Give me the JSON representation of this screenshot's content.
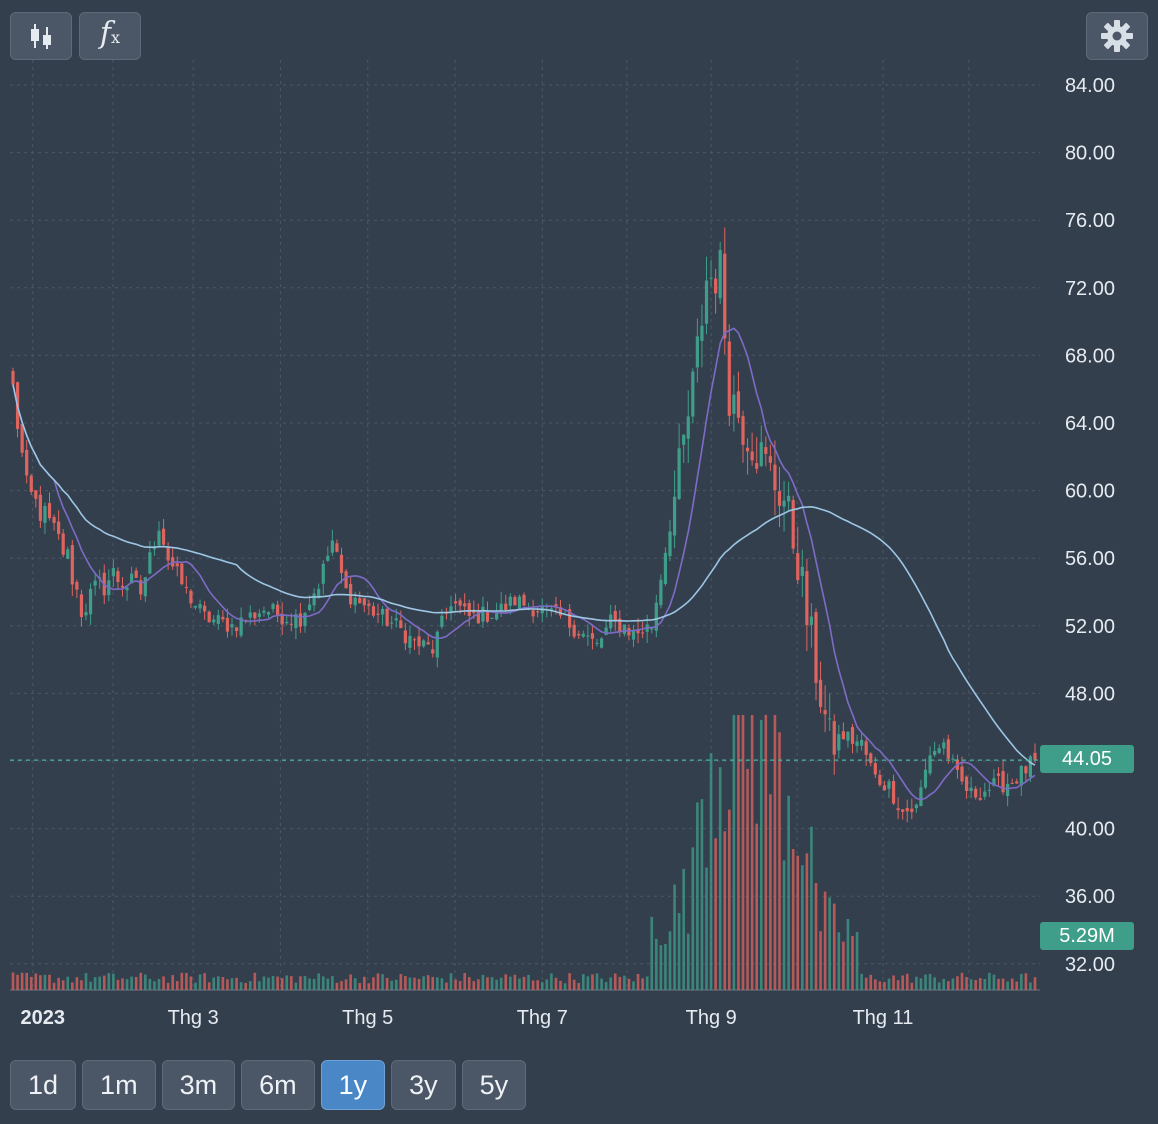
{
  "toolbar": {
    "chart_type_icon": "candlestick-icon",
    "indicator_icon": "function-fx-icon",
    "indicator_label": "f",
    "indicator_sub": "x",
    "settings_icon": "gear-icon"
  },
  "ranges": {
    "options": [
      "1d",
      "1m",
      "3m",
      "6m",
      "1y",
      "3y",
      "5y"
    ],
    "selected": "1y"
  },
  "price_tag": "44.05",
  "volume_tag": "5.29M",
  "colors": {
    "background": "#343f4d",
    "up": "#3f9e8a",
    "down": "#e0645e",
    "ma_short": "#7d6bc6",
    "ma_long": "#9cc6e4",
    "grid": "#4c5766",
    "price_line": "#44b3a0",
    "axis_text": "#e6ebf1"
  },
  "chart_data": {
    "type": "candlestick",
    "title": "",
    "xlabel": "",
    "ylabel": "",
    "ylim": [
      30,
      86
    ],
    "y_ticks": [
      "84.00",
      "80.00",
      "76.00",
      "72.00",
      "68.00",
      "64.00",
      "60.00",
      "56.00",
      "52.00",
      "48.00",
      "44.00",
      "40.00",
      "36.00",
      "32.00"
    ],
    "x_ticks": [
      {
        "label": "2023",
        "date": "2023-01-03",
        "bold": true
      },
      {
        "label": "Thg 3",
        "date": "2023-03-01"
      },
      {
        "label": "Thg 5",
        "date": "2023-05-02"
      },
      {
        "label": "Thg 7",
        "date": "2023-07-03"
      },
      {
        "label": "Thg 9",
        "date": "2023-09-01"
      },
      {
        "label": "Thg 11",
        "date": "2023-11-01"
      }
    ],
    "date_start": "2022-12-27",
    "date_end": "2023-12-25",
    "last_price": 44.05,
    "last_volume": "5.29M",
    "close_anchors": [
      [
        0,
        66
      ],
      [
        3,
        60
      ],
      [
        8,
        58
      ],
      [
        12,
        56
      ],
      [
        15,
        53
      ],
      [
        18,
        54
      ],
      [
        22,
        55
      ],
      [
        28,
        54
      ],
      [
        32,
        58
      ],
      [
        34,
        56
      ],
      [
        38,
        54
      ],
      [
        42,
        52.5
      ],
      [
        48,
        52
      ],
      [
        55,
        53
      ],
      [
        60,
        52.5
      ],
      [
        63,
        52.5
      ],
      [
        67,
        54.5
      ],
      [
        70,
        57
      ],
      [
        73,
        54
      ],
      [
        78,
        53
      ],
      [
        84,
        52
      ],
      [
        88,
        51
      ],
      [
        92,
        50.6
      ],
      [
        96,
        53.5
      ],
      [
        100,
        52.5
      ],
      [
        106,
        52.8
      ],
      [
        110,
        53.5
      ],
      [
        115,
        53
      ],
      [
        120,
        52.5
      ],
      [
        125,
        51.5
      ],
      [
        128,
        50.8
      ],
      [
        131,
        52.2
      ],
      [
        134,
        52
      ],
      [
        136,
        51.5
      ],
      [
        140,
        52
      ],
      [
        143,
        56.5
      ],
      [
        146,
        61
      ],
      [
        149,
        66
      ],
      [
        152,
        72.5
      ],
      [
        155,
        73
      ],
      [
        157,
        66
      ],
      [
        160,
        64
      ],
      [
        163,
        62.5
      ],
      [
        166,
        61
      ],
      [
        169,
        59.5
      ],
      [
        172,
        56
      ],
      [
        174,
        52.5
      ],
      [
        177,
        48
      ],
      [
        179,
        45
      ],
      [
        182,
        45.5
      ],
      [
        186,
        45
      ],
      [
        189,
        43
      ],
      [
        192,
        42.5
      ],
      [
        195,
        41
      ],
      [
        198,
        41.2
      ],
      [
        201,
        44.5
      ],
      [
        204,
        45
      ],
      [
        207,
        43
      ],
      [
        210,
        42
      ],
      [
        213,
        42.3
      ],
      [
        216,
        42.6
      ],
      [
        219,
        42.8
      ],
      [
        222,
        43.5
      ],
      [
        224,
        44.05
      ]
    ],
    "volume_scale": "relative",
    "volume_max_index": 160,
    "series": [
      {
        "name": "",
        "type": "ma",
        "period": 10,
        "color": "#7d6bc6"
      },
      {
        "name": "",
        "type": "ma",
        "period": 50,
        "color": "#9cc6e4"
      }
    ]
  }
}
